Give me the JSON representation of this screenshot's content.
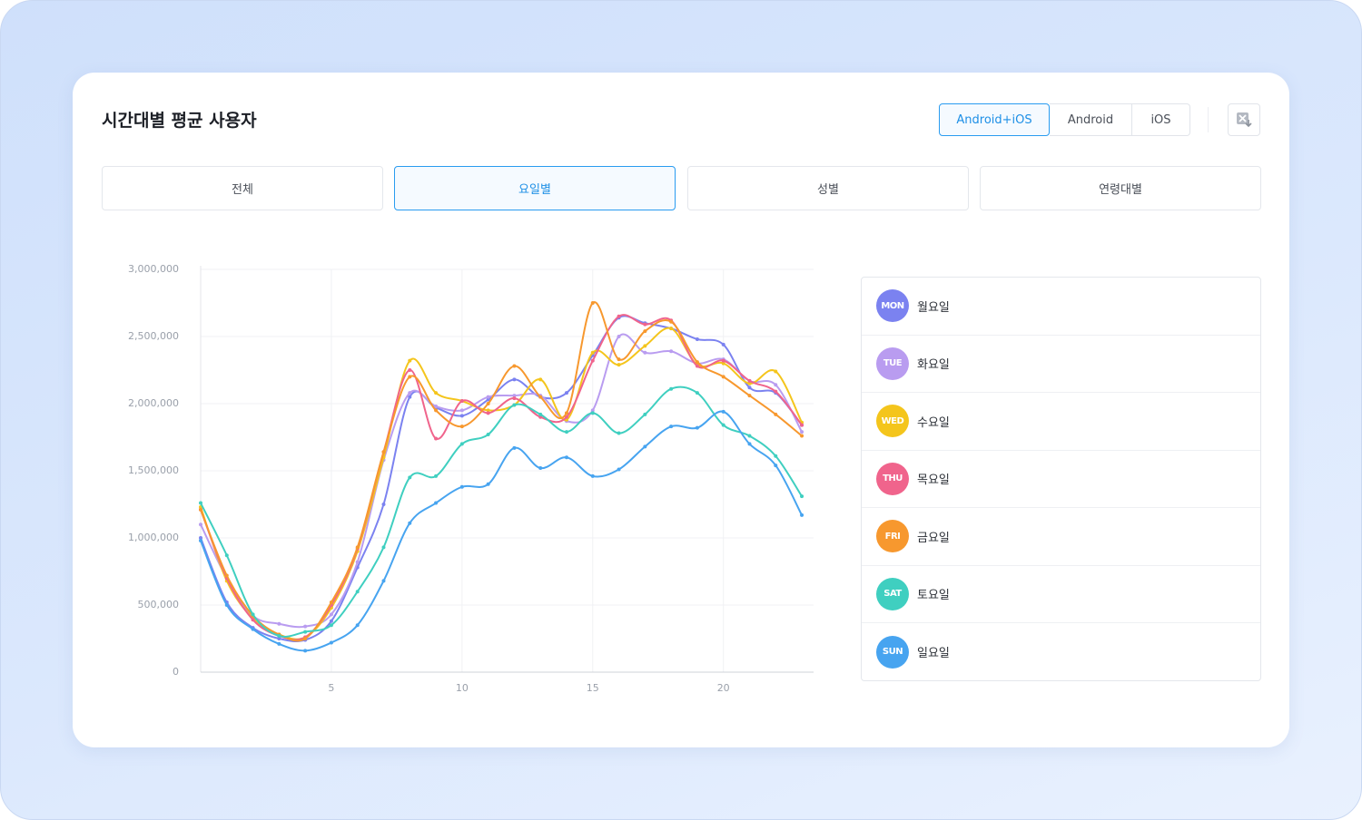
{
  "header": {
    "title": "시간대별 평균 사용자",
    "platforms": [
      "Android+iOS",
      "Android",
      "iOS"
    ],
    "tabs": [
      "전체",
      "요일별",
      "성별",
      "연령대별"
    ]
  },
  "chart_data": {
    "type": "line",
    "x": [
      0,
      1,
      2,
      3,
      4,
      5,
      6,
      7,
      8,
      9,
      10,
      11,
      12,
      13,
      14,
      15,
      16,
      17,
      18,
      19,
      20,
      21,
      22,
      23
    ],
    "xlim": [
      0,
      23.45
    ],
    "xticks": [
      5,
      10,
      15,
      20
    ],
    "ylim": [
      0,
      3000000
    ],
    "yticks": [
      0,
      {
        "value": 500000,
        "label": "500,000"
      },
      {
        "value": 1000000,
        "label": "1,000,000"
      },
      {
        "value": 1500000,
        "label": "1,500,000"
      },
      {
        "value": 2000000,
        "label": "2,000,000"
      },
      {
        "value": 2500000,
        "label": "2,500,000"
      },
      {
        "value": 3000000,
        "label": "3,000,000"
      }
    ],
    "grid": true,
    "series": [
      {
        "name": "월요일",
        "badge": "MON",
        "color": "#7b82f0",
        "values": [
          1000000,
          520000,
          330000,
          250000,
          240000,
          380000,
          780000,
          1250000,
          2050000,
          1970000,
          1910000,
          2030000,
          2180000,
          2050000,
          2080000,
          2360000,
          2640000,
          2600000,
          2560000,
          2480000,
          2440000,
          2120000,
          2080000,
          1840000
        ]
      },
      {
        "name": "화요일",
        "badge": "TUE",
        "color": "#b99cf0",
        "values": [
          1100000,
          700000,
          420000,
          360000,
          340000,
          430000,
          820000,
          1580000,
          2080000,
          1980000,
          1950000,
          2050000,
          2060000,
          2060000,
          1870000,
          1950000,
          2500000,
          2380000,
          2390000,
          2300000,
          2330000,
          2170000,
          2140000,
          1790000
        ]
      },
      {
        "name": "수요일",
        "badge": "WED",
        "color": "#f4c51c",
        "values": [
          1230000,
          680000,
          400000,
          280000,
          260000,
          480000,
          900000,
          1600000,
          2320000,
          2080000,
          2020000,
          1950000,
          1990000,
          2180000,
          1880000,
          2380000,
          2290000,
          2430000,
          2560000,
          2290000,
          2300000,
          2150000,
          2240000,
          1860000
        ]
      },
      {
        "name": "목요일",
        "badge": "THU",
        "color": "#f0648c",
        "values": [
          1210000,
          700000,
          390000,
          270000,
          260000,
          500000,
          920000,
          1640000,
          2250000,
          1740000,
          2020000,
          1930000,
          2040000,
          1900000,
          1900000,
          2320000,
          2650000,
          2590000,
          2620000,
          2280000,
          2320000,
          2170000,
          2090000,
          1840000
        ]
      },
      {
        "name": "금요일",
        "badge": "FRI",
        "color": "#f7982e",
        "values": [
          1210000,
          720000,
          420000,
          280000,
          250000,
          520000,
          930000,
          1640000,
          2200000,
          1950000,
          1830000,
          2000000,
          2280000,
          2050000,
          1930000,
          2750000,
          2330000,
          2540000,
          2610000,
          2310000,
          2200000,
          2060000,
          1920000,
          1760000
        ]
      },
      {
        "name": "토요일",
        "badge": "SAT",
        "color": "#3fcfc0",
        "values": [
          1260000,
          870000,
          430000,
          270000,
          300000,
          350000,
          600000,
          930000,
          1450000,
          1460000,
          1700000,
          1770000,
          1990000,
          1920000,
          1790000,
          1930000,
          1780000,
          1920000,
          2110000,
          2080000,
          1840000,
          1760000,
          1610000,
          1310000
        ]
      },
      {
        "name": "일요일",
        "badge": "SUN",
        "color": "#47a4f0",
        "values": [
          980000,
          500000,
          320000,
          210000,
          160000,
          220000,
          350000,
          680000,
          1110000,
          1260000,
          1380000,
          1400000,
          1670000,
          1520000,
          1600000,
          1460000,
          1510000,
          1680000,
          1830000,
          1820000,
          1940000,
          1700000,
          1540000,
          1170000
        ]
      }
    ]
  }
}
